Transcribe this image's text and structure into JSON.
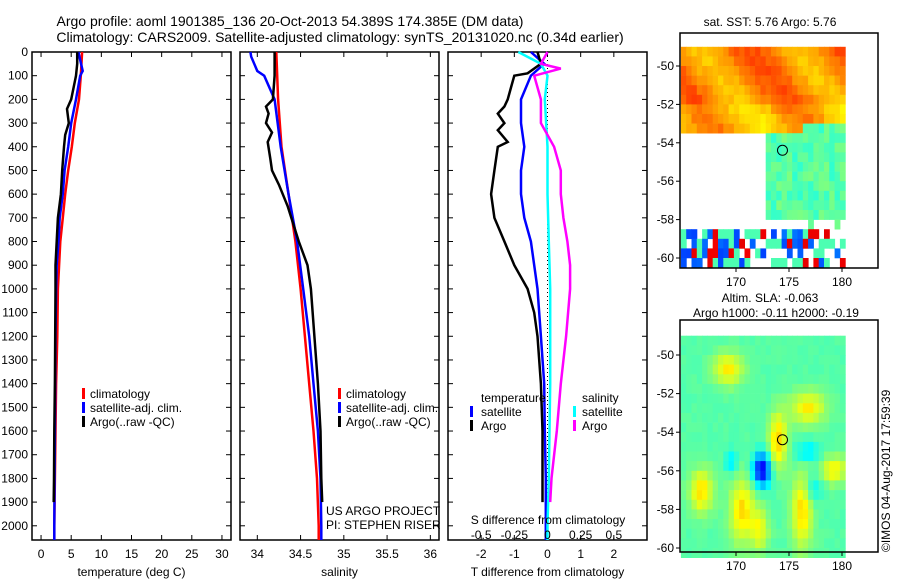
{
  "titles": {
    "line1": "Argo profile: aoml 1901385_136 20-Oct-2013 54.389S 174.385E (DM data)",
    "line2": "Climatology: CARS2009. Satellite-adjusted climatology: synTS_20131020.nc (0.34d earlier)"
  },
  "colors": {
    "climatology": "#ff0000",
    "satellite": "#0000ff",
    "argo": "#000000",
    "sal_satellite": "#00ffff",
    "sal_argo": "#ff00ff"
  },
  "chart_data": [
    {
      "type": "line",
      "name": "temperature",
      "xlabel": "temperature (deg C)",
      "ylabel": "",
      "xlim": [
        -1.5,
        31.5
      ],
      "ylim": [
        2060,
        0
      ],
      "xticks": [
        0,
        5,
        10,
        15,
        20,
        25,
        30
      ],
      "yticks": [
        0,
        100,
        200,
        300,
        400,
        500,
        600,
        700,
        800,
        900,
        1000,
        1100,
        1200,
        1300,
        1400,
        1500,
        1600,
        1700,
        1800,
        1900,
        2000
      ],
      "legend": [
        "climatology",
        "satellite-adj. clim.",
        "Argo(..raw -QC)"
      ],
      "series": [
        {
          "name": "climatology",
          "color": "#ff0000",
          "depth": [
            0,
            100,
            200,
            300,
            400,
            500,
            600,
            700,
            800,
            900,
            1000,
            1200,
            1400,
            1600,
            1800,
            2000,
            2060
          ],
          "values": [
            6.8,
            6.6,
            6.3,
            5.6,
            5.1,
            4.5,
            4.0,
            3.6,
            3.2,
            3.0,
            2.8,
            2.7,
            2.5,
            2.4,
            2.3,
            2.2,
            2.2
          ]
        },
        {
          "name": "satellite-adj. clim.",
          "color": "#0000ff",
          "depth": [
            0,
            80,
            100,
            200,
            300,
            400,
            500,
            600,
            700,
            800,
            900,
            1000,
            1200,
            1400,
            1600,
            1800,
            2000,
            2060
          ],
          "values": [
            6.2,
            6.9,
            6.5,
            5.8,
            5.0,
            4.5,
            3.9,
            3.6,
            3.1,
            2.9,
            2.6,
            2.5,
            2.4,
            2.35,
            2.3,
            2.25,
            2.2,
            2.2
          ]
        },
        {
          "name": "Argo(..raw -QC)",
          "color": "#000000",
          "depth": [
            0,
            50,
            100,
            200,
            240,
            300,
            350,
            400,
            500,
            600,
            700,
            800,
            900,
            1000,
            1200,
            1400,
            1600,
            1800,
            1900
          ],
          "values": [
            6.0,
            6.0,
            5.8,
            5.0,
            4.3,
            4.6,
            4.0,
            3.8,
            3.5,
            3.3,
            2.8,
            2.6,
            2.4,
            2.4,
            2.35,
            2.3,
            2.2,
            2.15,
            2.1
          ]
        }
      ]
    },
    {
      "type": "line",
      "name": "salinity",
      "xlabel": "salinity",
      "xlim": [
        33.8,
        36.1
      ],
      "ylim": [
        2060,
        0
      ],
      "xticks": [
        34,
        34.5,
        35,
        35.5,
        36
      ],
      "legend": [
        "climatology",
        "satellite-adj. clim.",
        "Argo(..raw -QC)"
      ],
      "annotations": [
        "US ARGO PROJECT",
        "PI: STEPHEN RISER"
      ],
      "series": [
        {
          "name": "climatology",
          "color": "#ff0000",
          "depth": [
            0,
            200,
            400,
            600,
            800,
            1000,
            1200,
            1400,
            1600,
            1800,
            2000,
            2060
          ],
          "values": [
            34.22,
            34.24,
            34.28,
            34.36,
            34.44,
            34.5,
            34.55,
            34.6,
            34.65,
            34.69,
            34.71,
            34.71
          ]
        },
        {
          "name": "satellite-adj. clim.",
          "color": "#0000ff",
          "depth": [
            0,
            20,
            80,
            100,
            200,
            400,
            600,
            800,
            1000,
            1200,
            1400,
            1600,
            1800,
            2000,
            2060
          ],
          "values": [
            33.92,
            33.93,
            34.0,
            34.08,
            34.2,
            34.27,
            34.36,
            34.46,
            34.53,
            34.6,
            34.65,
            34.7,
            34.73,
            34.74,
            34.74
          ]
        },
        {
          "name": "Argo(..raw -QC)",
          "color": "#000000",
          "depth": [
            0,
            100,
            200,
            230,
            260,
            300,
            340,
            380,
            450,
            500,
            560,
            650,
            800,
            900,
            1000,
            1200,
            1400,
            1600,
            1800,
            1900
          ],
          "values": [
            34.2,
            34.2,
            34.18,
            34.1,
            34.13,
            34.1,
            34.17,
            34.12,
            34.15,
            34.17,
            34.25,
            34.35,
            34.48,
            34.58,
            34.62,
            34.66,
            34.7,
            34.73,
            34.74,
            34.75
          ]
        }
      ]
    },
    {
      "type": "line",
      "name": "difference",
      "xlabel": "T difference from climatology",
      "x2label": "S difference from climatology",
      "xlim": [
        -3,
        3
      ],
      "x2lim": [
        -0.75,
        0.75
      ],
      "ylim": [
        2060,
        0
      ],
      "xticks": [
        -2,
        -1,
        0,
        1,
        2
      ],
      "x2ticks": [
        -0.5,
        -0.25,
        0,
        0.25,
        0.5
      ],
      "x2ticklabels": [
        "-0.5",
        "-0.25",
        "0",
        "0.25",
        "0.5"
      ],
      "legend_temperature": {
        "title": "temperature",
        "items": [
          "satellite",
          "Argo"
        ]
      },
      "legend_salinity": {
        "title": "salinity",
        "items": [
          "satellite",
          "Argo"
        ]
      },
      "series": [
        {
          "name": "T satellite",
          "axis": "T",
          "color": "#0000ff",
          "depth": [
            0,
            50,
            100,
            200,
            300,
            400,
            500,
            600,
            700,
            800,
            900,
            1000,
            1200,
            1400,
            1600,
            1800,
            2000,
            2060
          ],
          "values": [
            -0.5,
            -0.1,
            -0.5,
            -0.8,
            -0.8,
            -0.7,
            -0.8,
            -0.8,
            -0.7,
            -0.5,
            -0.4,
            -0.3,
            -0.2,
            -0.1,
            -0.08,
            -0.05,
            -0.05,
            -0.05
          ]
        },
        {
          "name": "T Argo",
          "axis": "T",
          "color": "#000000",
          "depth": [
            0,
            50,
            90,
            100,
            150,
            200,
            230,
            260,
            300,
            330,
            380,
            400,
            500,
            600,
            700,
            800,
            900,
            1000,
            1100,
            1200,
            1400,
            1600,
            1800,
            1900
          ],
          "values": [
            -0.3,
            -0.2,
            -0.6,
            -1.0,
            -1.1,
            -1.2,
            -1.3,
            -1.5,
            -1.3,
            -1.5,
            -1.2,
            -1.5,
            -1.6,
            -1.7,
            -1.6,
            -1.3,
            -1.0,
            -0.6,
            -0.4,
            -0.3,
            -0.2,
            -0.15,
            -0.15,
            -0.15
          ]
        },
        {
          "name": "S satellite",
          "axis": "S",
          "color": "#00ffff",
          "depth": [
            0,
            50,
            100,
            200,
            400,
            600,
            800,
            1000,
            1400,
            1800,
            2000,
            2060
          ],
          "values": [
            -0.22,
            -0.05,
            0.0,
            -0.02,
            0.0,
            0.0,
            0.01,
            0.02,
            0.02,
            0.01,
            0.0,
            0.0
          ]
        },
        {
          "name": "S Argo",
          "axis": "S",
          "color": "#ff00ff",
          "depth": [
            0,
            50,
            70,
            100,
            200,
            300,
            400,
            500,
            600,
            700,
            800,
            900,
            1000,
            1200,
            1400,
            1600,
            1800,
            1900
          ],
          "values": [
            0.0,
            -0.05,
            0.1,
            -0.1,
            -0.05,
            -0.05,
            0.05,
            0.1,
            0.1,
            0.12,
            0.15,
            0.17,
            0.17,
            0.14,
            0.1,
            0.07,
            0.03,
            0.02
          ]
        }
      ]
    },
    {
      "type": "heatmap",
      "name": "sst-map",
      "title": "sat. SST: 5.76 Argo: 5.76",
      "xticks": [
        170,
        175,
        180
      ],
      "yticks": [
        -50,
        -52,
        -54,
        -56,
        -58,
        -60
      ],
      "marker": [
        174.385,
        -54.389
      ]
    },
    {
      "type": "heatmap",
      "name": "sla-map",
      "title1": "Altim. SLA: -0.063",
      "title2": "Argo h1000: -0.11 h2000: -0.19",
      "xticks": [
        170,
        175,
        180
      ],
      "yticks": [
        -50,
        -52,
        -54,
        -56,
        -58,
        -60
      ],
      "marker": [
        174.385,
        -54.389
      ]
    }
  ],
  "credit": "©IMOS 04-Aug-2017 17:59:39"
}
